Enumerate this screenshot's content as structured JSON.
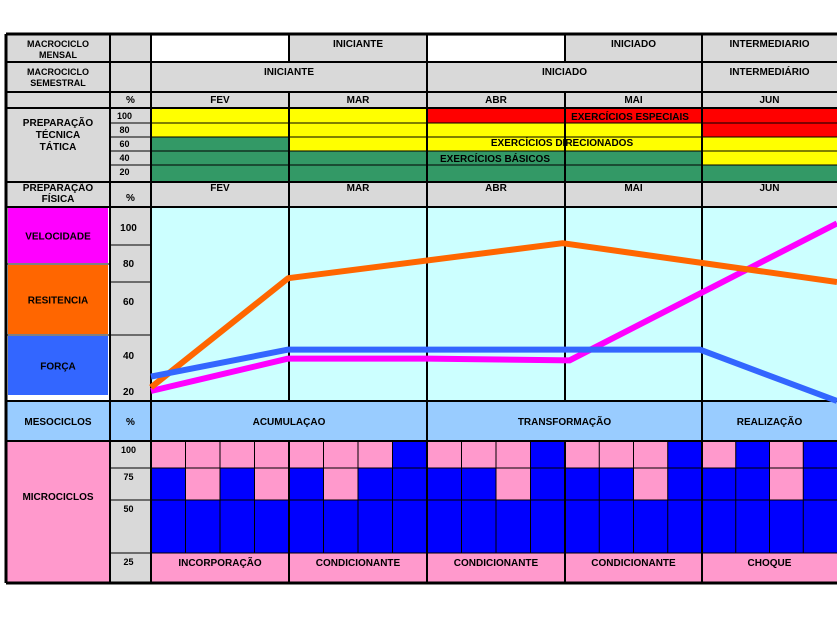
{
  "header_rows": {
    "macro_mensal": {
      "label_lines": [
        "MACROCICLO",
        "MENSAL"
      ],
      "segments": [
        {
          "text": "",
          "color": "#ffffff"
        },
        {
          "text": "INICIANTE",
          "color": "#d9d9d9"
        },
        {
          "text": "",
          "color": "#ffffff"
        },
        {
          "text": "INICIADO",
          "color": "#d9d9d9"
        },
        {
          "text": "INTERMEDIARIO",
          "color": "#d9d9d9"
        }
      ]
    },
    "macro_semestral": {
      "label_lines": [
        "MACROCICLO",
        "SEMESTRAL"
      ],
      "segments": [
        "INICIANTE",
        "INICIADO",
        "INTERMEDIÁRIO"
      ]
    }
  },
  "months": [
    "FEV",
    "MAR",
    "ABR",
    "MAI",
    "JUN"
  ],
  "tecnica": {
    "label_lines": [
      "PREPARAÇÃO",
      "TÉCNICA",
      "TÁTICA"
    ],
    "percent_header": "%",
    "levels": [
      "100",
      "80",
      "60",
      "40",
      "20"
    ],
    "bands": [
      {
        "name": "EXERCÍCIOS ESPECIAIS",
        "color": "#ff0000"
      },
      {
        "name": "EXERCÍCIOS DIRECIONADOS",
        "color": "#ffff00"
      },
      {
        "name": "EXERCÍCIOS BÁSICOS",
        "color": "#339966"
      }
    ]
  },
  "fisica": {
    "label_lines": [
      "PREPARAÇÃO",
      "FÍSICA"
    ],
    "percent_header": "%",
    "y_ticks": [
      "100",
      "80",
      "60",
      "40",
      "20"
    ]
  },
  "legend": [
    {
      "name": "VELOCIDADE",
      "color": "#ff00ff"
    },
    {
      "name": "RESITENCIA",
      "color": "#ff6600"
    },
    {
      "name": "FORÇA",
      "color": "#3366ff"
    }
  ],
  "mesociclos": {
    "label": "MESOCICLOS",
    "percent_header": "%",
    "phases": [
      "ACUMULAÇAO",
      "TRANSFORMAÇÃO",
      "REALIZAÇÃO"
    ]
  },
  "microciclos": {
    "label": "MICROCICLOS",
    "levels": [
      "100",
      "75",
      "50",
      "25"
    ],
    "labels": [
      "INCORPORAÇÃO",
      "CONDICIONANTE",
      "CONDICIONANTE",
      "CONDICIONANTE",
      "CHOQUE"
    ],
    "weeks_per_month": 4,
    "week_levels": [
      [
        75,
        50,
        75,
        50
      ],
      [
        75,
        50,
        75,
        100
      ],
      [
        75,
        75,
        50,
        100
      ],
      [
        75,
        75,
        50,
        100
      ],
      [
        75,
        100,
        50,
        100
      ]
    ]
  },
  "chart_data": {
    "type": "line",
    "x": [
      "FEV",
      "MAR",
      "ABR",
      "MAI",
      "JUN"
    ],
    "ylim": [
      10,
      110
    ],
    "series": [
      {
        "name": "VELOCIDADE",
        "color": "#ff00ff",
        "points": [
          [
            0,
            20
          ],
          [
            1,
            38
          ],
          [
            2.02,
            38
          ],
          [
            3.05,
            37
          ],
          [
            5,
            102
          ]
        ]
      },
      {
        "name": "RESITENCIA",
        "color": "#ff6600",
        "points": [
          [
            0,
            22
          ],
          [
            1,
            72
          ],
          [
            3,
            91
          ],
          [
            5,
            70
          ]
        ]
      },
      {
        "name": "FORÇA",
        "color": "#3366ff",
        "points": [
          [
            0,
            28
          ],
          [
            1,
            42
          ],
          [
            4,
            42
          ],
          [
            5,
            10
          ]
        ]
      }
    ]
  },
  "theme": {
    "grid_bg": "#d9d9d9",
    "chart_bg": "#ccffff",
    "meso_bg": "#99ccff",
    "micro_bg": "#ff99cc",
    "micro_fill": "#0000ff"
  }
}
